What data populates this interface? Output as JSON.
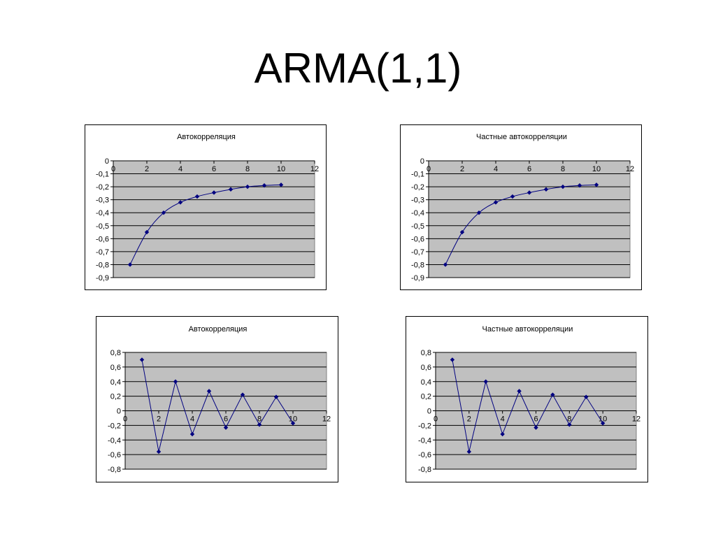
{
  "slide": {
    "title": "ARMA(1,1)"
  },
  "style": {
    "plot_background": "#c0c0c0",
    "gridline_color": "#000000",
    "series_color": "#000080"
  },
  "chart_data": [
    {
      "type": "line",
      "title": "Автокорреляция",
      "smooth": true,
      "x": [
        1,
        2,
        3,
        4,
        5,
        6,
        7,
        8,
        9,
        10
      ],
      "y": [
        -0.8,
        -0.55,
        -0.4,
        -0.32,
        -0.275,
        -0.245,
        -0.22,
        -0.2,
        -0.19,
        -0.185
      ],
      "xlim": [
        0,
        12
      ],
      "ylim": [
        -0.9,
        0
      ],
      "x_ticks": [
        "0",
        "2",
        "4",
        "6",
        "8",
        "10",
        "12"
      ],
      "y_ticks": [
        "0",
        "-0,1",
        "-0,2",
        "-0,3",
        "-0,4",
        "-0,5",
        "-0,6",
        "-0,7",
        "-0,8",
        "-0,9"
      ],
      "grid": true,
      "legend": "none"
    },
    {
      "type": "line",
      "title": "Частные автокорреляции",
      "smooth": true,
      "x": [
        1,
        2,
        3,
        4,
        5,
        6,
        7,
        8,
        9,
        10
      ],
      "y": [
        -0.8,
        -0.55,
        -0.4,
        -0.32,
        -0.275,
        -0.245,
        -0.22,
        -0.2,
        -0.19,
        -0.185
      ],
      "xlim": [
        0,
        12
      ],
      "ylim": [
        -0.9,
        0
      ],
      "x_ticks": [
        "0",
        "2",
        "4",
        "6",
        "8",
        "10",
        "12"
      ],
      "y_ticks": [
        "0",
        "-0,1",
        "-0,2",
        "-0,3",
        "-0,4",
        "-0,5",
        "-0,6",
        "-0,7",
        "-0,8",
        "-0,9"
      ],
      "grid": true,
      "legend": "none"
    },
    {
      "type": "line",
      "title": "Автокорреляция",
      "smooth": false,
      "x": [
        1,
        2,
        3,
        4,
        5,
        6,
        7,
        8,
        9,
        10
      ],
      "y": [
        0.7,
        -0.56,
        0.4,
        -0.32,
        0.27,
        -0.23,
        0.22,
        -0.19,
        0.19,
        -0.17
      ],
      "xlim": [
        0,
        12
      ],
      "ylim": [
        -0.8,
        0.8
      ],
      "x_ticks": [
        "0",
        "2",
        "4",
        "6",
        "8",
        "10",
        "12"
      ],
      "y_ticks": [
        "0,8",
        "0,6",
        "0,4",
        "0,2",
        "0",
        "-0,2",
        "-0,4",
        "-0,6",
        "-0,8"
      ],
      "grid": true,
      "legend": "none"
    },
    {
      "type": "line",
      "title": "Частные автокорреляции",
      "smooth": false,
      "x": [
        1,
        2,
        3,
        4,
        5,
        6,
        7,
        8,
        9,
        10
      ],
      "y": [
        0.7,
        -0.56,
        0.4,
        -0.32,
        0.27,
        -0.23,
        0.22,
        -0.19,
        0.19,
        -0.17
      ],
      "xlim": [
        0,
        12
      ],
      "ylim": [
        -0.8,
        0.8
      ],
      "x_ticks": [
        "0",
        "2",
        "4",
        "6",
        "8",
        "10",
        "12"
      ],
      "y_ticks": [
        "0,8",
        "0,6",
        "0,4",
        "0,2",
        "0",
        "-0,2",
        "-0,4",
        "-0,6",
        "-0,8"
      ],
      "grid": true,
      "legend": "none"
    }
  ]
}
